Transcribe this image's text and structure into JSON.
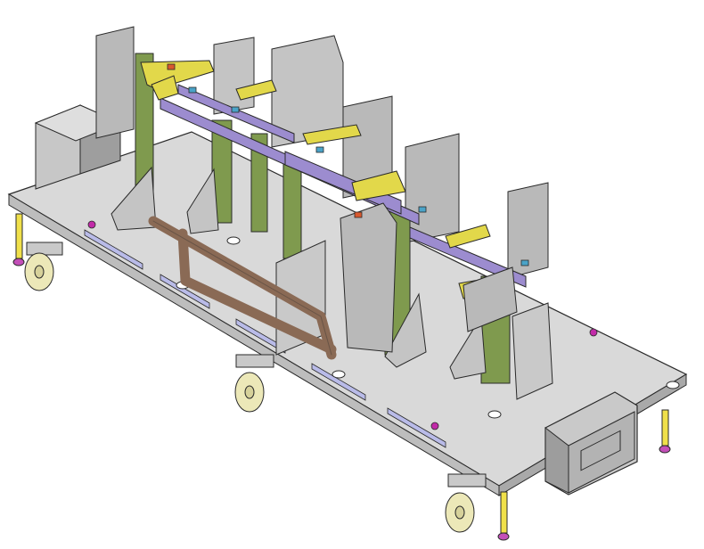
{
  "scene": {
    "subject": "welding fixture",
    "colors": {
      "background": "#ffffff",
      "plate_top": "#d9d9d9",
      "plate_side": "#bdbdbd",
      "outline": "#2a2a2a",
      "stand_green": "#7f9a4e",
      "clamp_yellow": "#e2d84a",
      "rail_purple": "#9c8ccf",
      "pipe_brown": "#8a6a55",
      "block_gray": "#b9b9b9",
      "caster_wheel": "#ece8b8",
      "leg_yellow": "#f0e04a",
      "foot_magenta": "#c34fb8",
      "slot_blue": "#b9bbe8",
      "marker_magenta": "#c12aa8"
    }
  }
}
